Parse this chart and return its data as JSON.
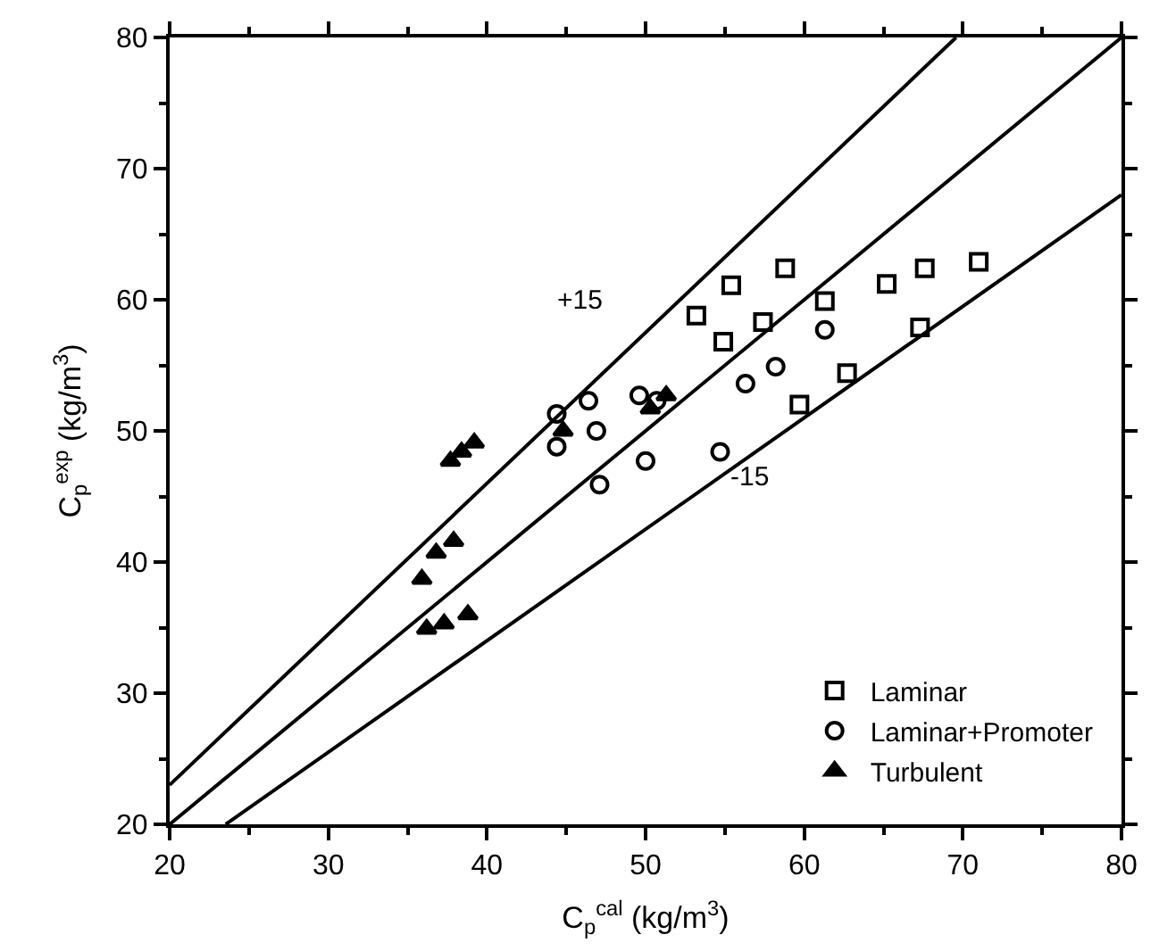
{
  "chart_data": {
    "type": "scatter",
    "xlabel": "C$_{p}$$^{cal}$ (kg/m$^{3}$)",
    "ylabel": "C$_{p}$$^{exp}$ (kg/m$^{3}$)",
    "xlim": [
      20,
      80
    ],
    "ylim": [
      20,
      80
    ],
    "xticks": [
      20,
      30,
      40,
      50,
      60,
      70,
      80
    ],
    "yticks": [
      20,
      30,
      40,
      50,
      60,
      70,
      80
    ],
    "legend": "bottom right",
    "annotations": [
      "+15",
      "-15"
    ],
    "series": [
      {
        "name": "Laminar",
        "color": "#000000",
        "marker": "square",
        "x": [
          53.2,
          55.4,
          54.9,
          57.4,
          58.8,
          61.3,
          65.2,
          67.6,
          71.0,
          67.3,
          62.7,
          59.7
        ],
        "values": [
          58.8,
          61.1,
          56.8,
          58.3,
          62.4,
          59.9,
          61.2,
          62.4,
          62.9,
          57.9,
          54.4,
          52.0
        ]
      },
      {
        "name": "Laminar+Promoter",
        "color": "#000000",
        "marker": "circle",
        "x": [
          44.4,
          44.4,
          46.4,
          46.9,
          47.1,
          49.6,
          50.7,
          50.0,
          54.7,
          56.3,
          58.2,
          61.3
        ],
        "values": [
          51.3,
          48.8,
          52.3,
          50.0,
          45.9,
          52.7,
          52.3,
          47.7,
          48.4,
          53.6,
          54.9,
          57.7
        ]
      },
      {
        "name": "Turbulent",
        "color": "#000000",
        "marker": "triangle",
        "x": [
          37.7,
          38.4,
          39.2,
          44.8,
          50.3,
          51.3,
          35.9,
          36.8,
          37.9,
          36.2,
          37.3,
          38.8
        ],
        "values": [
          47.7,
          48.4,
          49.1,
          50.0,
          51.7,
          52.7,
          38.7,
          40.7,
          41.6,
          34.9,
          35.3,
          36.0
        ]
      },
      {
        "type": "line",
        "color": "#000000",
        "x": [
          20,
          69.57
        ],
        "values": [
          23,
          80
        ]
      },
      {
        "type": "line",
        "color": "#000000",
        "x": [
          20,
          80
        ],
        "values": [
          20,
          80
        ]
      },
      {
        "type": "line",
        "color": "#000000",
        "x": [
          23.53,
          80
        ],
        "values": [
          20,
          68
        ]
      }
    ]
  }
}
